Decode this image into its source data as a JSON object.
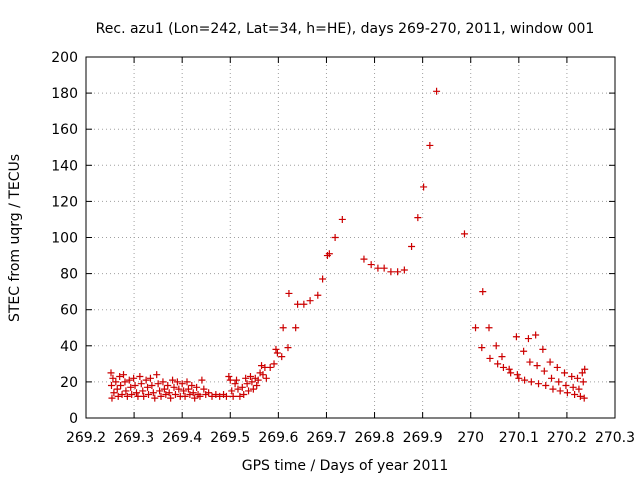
{
  "chart_data": {
    "type": "scatter",
    "title": "Rec. azu1 (Lon=242, Lat=34, h=HE), days 269-270, 2011, window 001",
    "xlabel": "GPS time / Days of year 2011",
    "ylabel": "STEC from uqrg / TECUs",
    "xlim": [
      269.2,
      270.3
    ],
    "ylim": [
      0,
      200
    ],
    "x_ticks": [
      269.2,
      269.3,
      269.4,
      269.5,
      269.6,
      269.7,
      269.8,
      269.9,
      270,
      270.1,
      270.2,
      270.3
    ],
    "x_tick_labels": [
      "269.2",
      "269.3",
      "269.4",
      "269.5",
      "269.6",
      "269.7",
      "269.8",
      "269.9",
      "270",
      "270.1",
      "270.2",
      "270.3"
    ],
    "y_ticks": [
      0,
      20,
      40,
      60,
      80,
      100,
      120,
      140,
      160,
      180,
      200
    ],
    "y_tick_labels": [
      "0",
      "20",
      "40",
      "60",
      "80",
      "100",
      "120",
      "140",
      "160",
      "180",
      "200"
    ],
    "grid": true,
    "marker": "+",
    "color": "#cc0000",
    "points": [
      [
        269.252,
        25
      ],
      [
        269.253,
        18
      ],
      [
        269.254,
        11
      ],
      [
        269.256,
        22
      ],
      [
        269.258,
        14
      ],
      [
        269.262,
        20
      ],
      [
        269.265,
        16
      ],
      [
        269.267,
        12
      ],
      [
        269.27,
        23
      ],
      [
        269.272,
        18
      ],
      [
        269.275,
        13
      ],
      [
        269.278,
        24
      ],
      [
        269.281,
        20
      ],
      [
        269.283,
        15
      ],
      [
        269.286,
        12
      ],
      [
        269.29,
        21
      ],
      [
        269.293,
        17
      ],
      [
        269.295,
        13
      ],
      [
        269.299,
        22
      ],
      [
        269.302,
        18
      ],
      [
        269.305,
        14
      ],
      [
        269.308,
        12
      ],
      [
        269.312,
        23
      ],
      [
        269.315,
        19
      ],
      [
        269.318,
        15
      ],
      [
        269.32,
        12
      ],
      [
        269.325,
        21
      ],
      [
        269.328,
        17
      ],
      [
        269.33,
        13
      ],
      [
        269.334,
        22
      ],
      [
        269.337,
        18
      ],
      [
        269.34,
        14
      ],
      [
        269.343,
        11
      ],
      [
        269.347,
        24
      ],
      [
        269.35,
        19
      ],
      [
        269.353,
        15
      ],
      [
        269.356,
        12
      ],
      [
        269.36,
        20
      ],
      [
        269.363,
        16
      ],
      [
        269.366,
        13
      ],
      [
        269.37,
        18
      ],
      [
        269.373,
        14
      ],
      [
        269.376,
        11
      ],
      [
        269.38,
        21
      ],
      [
        269.383,
        17
      ],
      [
        269.386,
        13
      ],
      [
        269.39,
        20
      ],
      [
        269.393,
        16
      ],
      [
        269.396,
        12
      ],
      [
        269.4,
        19
      ],
      [
        269.403,
        15
      ],
      [
        269.406,
        12
      ],
      [
        269.41,
        20
      ],
      [
        269.413,
        16
      ],
      [
        269.416,
        13
      ],
      [
        269.42,
        18
      ],
      [
        269.423,
        14
      ],
      [
        269.426,
        11
      ],
      [
        269.43,
        17
      ],
      [
        269.433,
        13
      ],
      [
        269.437,
        12
      ],
      [
        269.441,
        21
      ],
      [
        269.445,
        16
      ],
      [
        269.449,
        13
      ],
      [
        269.455,
        14
      ],
      [
        269.462,
        12
      ],
      [
        269.47,
        13
      ],
      [
        269.478,
        12
      ],
      [
        269.486,
        13
      ],
      [
        269.492,
        12
      ],
      [
        269.497,
        23
      ],
      [
        269.5,
        21
      ],
      [
        269.503,
        15
      ],
      [
        269.506,
        12
      ],
      [
        269.51,
        19
      ],
      [
        269.513,
        21
      ],
      [
        269.516,
        16
      ],
      [
        269.52,
        12
      ],
      [
        269.525,
        17
      ],
      [
        269.528,
        13
      ],
      [
        269.532,
        22
      ],
      [
        269.535,
        19
      ],
      [
        269.538,
        15
      ],
      [
        269.542,
        23
      ],
      [
        269.545,
        20
      ],
      [
        269.548,
        16
      ],
      [
        269.552,
        22
      ],
      [
        269.555,
        18
      ],
      [
        269.558,
        21
      ],
      [
        269.562,
        25
      ],
      [
        269.565,
        29
      ],
      [
        269.568,
        24
      ],
      [
        269.572,
        28
      ],
      [
        269.575,
        22
      ],
      [
        269.583,
        28
      ],
      [
        269.591,
        30
      ],
      [
        269.595,
        38
      ],
      [
        269.598,
        36
      ],
      [
        269.607,
        34
      ],
      [
        269.61,
        50
      ],
      [
        269.62,
        39
      ],
      [
        269.622,
        69
      ],
      [
        269.636,
        50
      ],
      [
        269.64,
        63
      ],
      [
        269.653,
        63
      ],
      [
        269.666,
        65
      ],
      [
        269.682,
        68
      ],
      [
        269.692,
        77
      ],
      [
        269.702,
        90
      ],
      [
        269.706,
        91
      ],
      [
        269.718,
        100
      ],
      [
        269.733,
        110
      ],
      [
        269.778,
        88
      ],
      [
        269.793,
        85
      ],
      [
        269.807,
        83
      ],
      [
        269.82,
        83
      ],
      [
        269.834,
        81
      ],
      [
        269.848,
        81
      ],
      [
        269.862,
        82
      ],
      [
        269.877,
        95
      ],
      [
        269.89,
        111
      ],
      [
        269.902,
        128
      ],
      [
        269.915,
        151
      ],
      [
        269.929,
        181
      ],
      [
        269.987,
        102
      ],
      [
        270.01,
        50
      ],
      [
        270.023,
        39
      ],
      [
        270.025,
        70
      ],
      [
        270.038,
        50
      ],
      [
        270.04,
        33
      ],
      [
        270.053,
        40
      ],
      [
        270.056,
        30
      ],
      [
        270.065,
        34
      ],
      [
        270.068,
        28
      ],
      [
        270.08,
        27
      ],
      [
        270.083,
        25
      ],
      [
        270.095,
        45
      ],
      [
        270.097,
        24
      ],
      [
        270.1,
        22
      ],
      [
        270.11,
        37
      ],
      [
        270.112,
        21
      ],
      [
        270.12,
        44
      ],
      [
        270.123,
        31
      ],
      [
        270.126,
        20
      ],
      [
        270.135,
        46
      ],
      [
        270.138,
        29
      ],
      [
        270.141,
        19
      ],
      [
        270.15,
        38
      ],
      [
        270.153,
        26
      ],
      [
        270.156,
        18
      ],
      [
        270.165,
        31
      ],
      [
        270.168,
        22
      ],
      [
        270.171,
        16
      ],
      [
        270.18,
        28
      ],
      [
        270.183,
        20
      ],
      [
        270.186,
        15
      ],
      [
        270.195,
        25
      ],
      [
        270.198,
        18
      ],
      [
        270.201,
        14
      ],
      [
        270.21,
        23
      ],
      [
        270.213,
        17
      ],
      [
        270.216,
        13
      ],
      [
        270.222,
        22
      ],
      [
        270.225,
        16
      ],
      [
        270.228,
        12
      ],
      [
        270.232,
        25
      ],
      [
        270.234,
        20
      ],
      [
        270.236,
        11
      ],
      [
        270.237,
        27
      ]
    ]
  }
}
